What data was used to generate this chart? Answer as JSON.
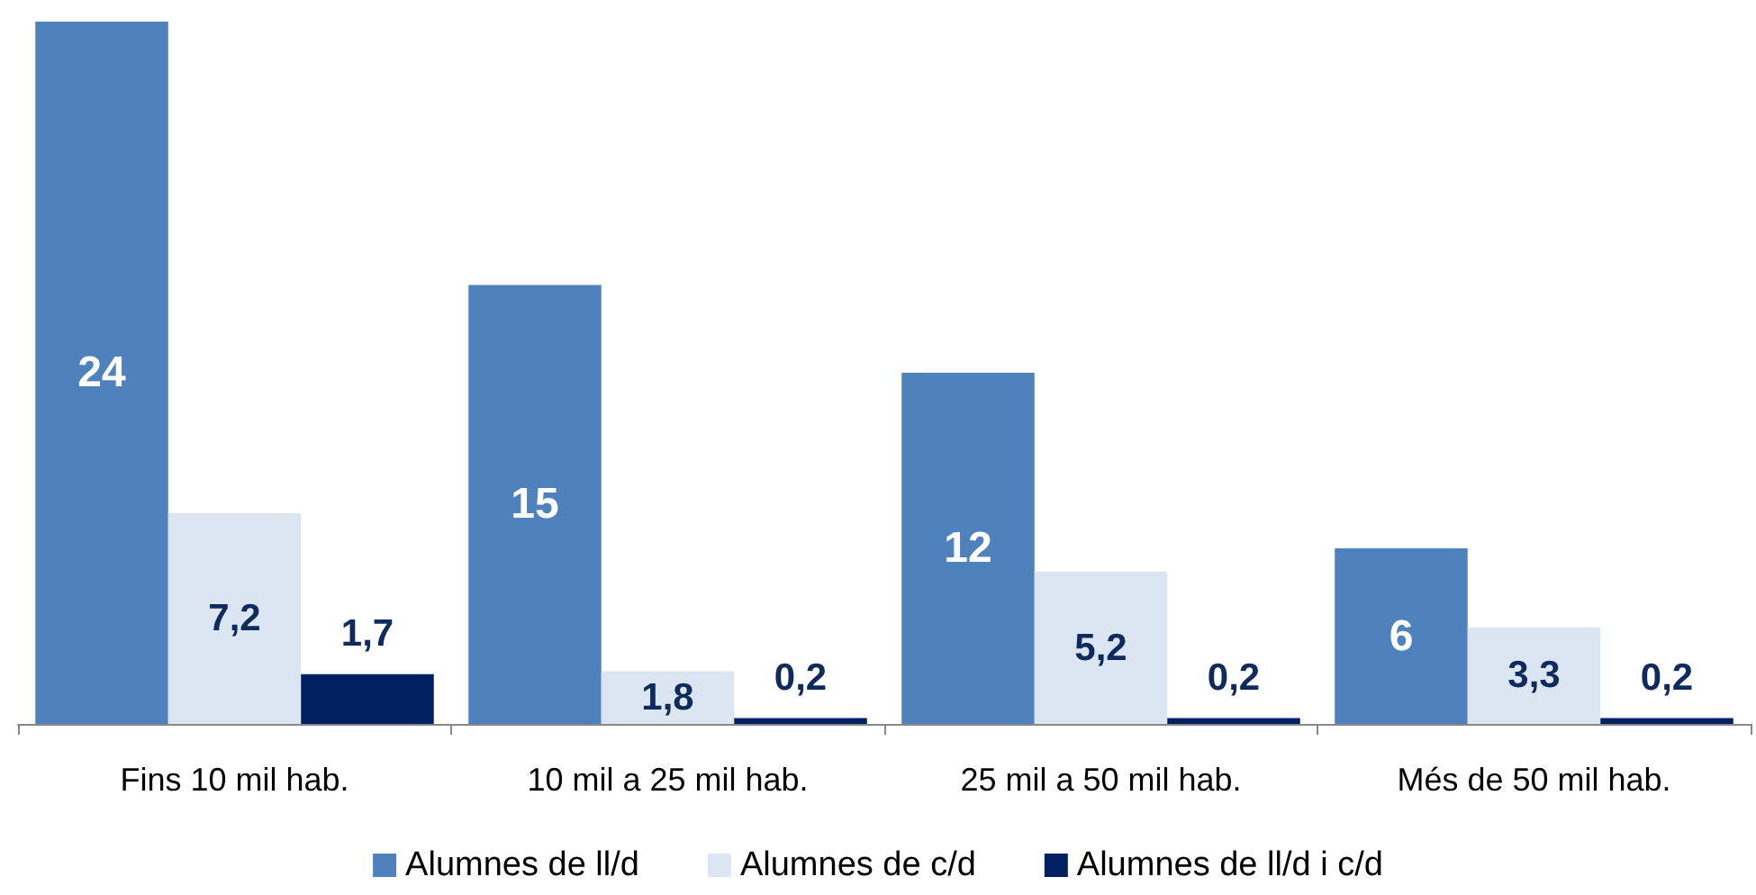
{
  "chart_data": {
    "type": "bar",
    "categories": [
      "Fins 10 mil hab.",
      "10 mil a 25 mil hab.",
      "25 mil a 50 mil hab.",
      "Més de 50 mil hab."
    ],
    "series": [
      {
        "name": "Alumnes de ll/d",
        "color": "#4f81bd",
        "values": [
          24,
          15,
          12,
          6
        ],
        "value_labels": [
          "24",
          "15",
          "12",
          "6"
        ]
      },
      {
        "name": "Alumnes de c/d",
        "color": "#dce6f2",
        "values": [
          7.2,
          1.8,
          5.2,
          3.3
        ],
        "value_labels": [
          "7,2",
          "1,8",
          "5,2",
          "3,3"
        ]
      },
      {
        "name": "Alumnes de ll/d i c/d",
        "color": "#002060",
        "values": [
          1.7,
          0.2,
          0.2,
          0.2
        ],
        "value_labels": [
          "1,7",
          "0,2",
          "0,2",
          "0,2"
        ]
      }
    ],
    "legend": "bottom",
    "grid": false
  }
}
